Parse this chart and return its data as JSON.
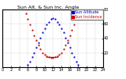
{
  "title": "Sun Alt. & Sun Inc. Angle",
  "legend_labels": [
    "Sun Altitude",
    "Sun Incidence"
  ],
  "legend_colors": [
    "#0000cc",
    "#cc0000"
  ],
  "legend_bg": [
    "#0000cc",
    "#cc0000"
  ],
  "bg_color": "#ffffff",
  "grid_color": "#aaaaaa",
  "xlim": [
    0,
    24
  ],
  "ylim": [
    0,
    80
  ],
  "yticks": [
    20,
    40,
    60,
    80
  ],
  "ytick_labels": [
    "20",
    "40",
    "60",
    "80"
  ],
  "xtick_step": 2,
  "blue_x": [
    6.0,
    6.5,
    7.0,
    7.5,
    8.0,
    8.5,
    9.0,
    9.5,
    10.0,
    10.5,
    11.0,
    11.5,
    12.0,
    12.5,
    13.0,
    13.5,
    14.0,
    14.5,
    15.0,
    15.5,
    16.0,
    16.5,
    17.0,
    17.5,
    18.0
  ],
  "blue_y": [
    3,
    8,
    14,
    20,
    27,
    34,
    41,
    48,
    54,
    59,
    63,
    67,
    68,
    67,
    63,
    59,
    54,
    48,
    41,
    34,
    27,
    20,
    14,
    8,
    3
  ],
  "red_x": [
    5.5,
    6.0,
    6.5,
    7.0,
    7.5,
    8.0,
    8.5,
    9.0,
    9.5,
    10.0,
    10.5,
    11.0,
    11.5,
    12.0,
    12.5,
    13.0,
    13.5,
    14.0,
    14.5,
    15.0,
    15.5,
    16.0,
    16.5,
    17.0,
    17.5,
    18.0,
    18.5
  ],
  "red_y": [
    74,
    67,
    59,
    51,
    44,
    37,
    31,
    25,
    20,
    17,
    15,
    14,
    13,
    13,
    14,
    15,
    17,
    20,
    25,
    31,
    37,
    44,
    51,
    59,
    67,
    74,
    79
  ],
  "red_flat_x": [
    10.5,
    11.0,
    11.5,
    12.0,
    12.5,
    13.0
  ],
  "red_flat_y": [
    14,
    14,
    14,
    14,
    14,
    14
  ],
  "title_fontsize": 4.5,
  "tick_fontsize": 3.5,
  "legend_fontsize": 3.5,
  "marker_size": 1.2
}
